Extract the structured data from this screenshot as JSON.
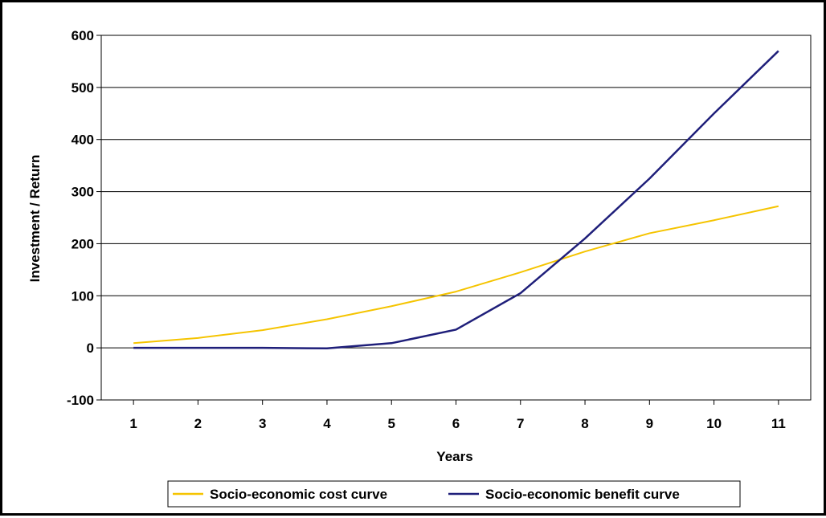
{
  "chart_data": {
    "type": "line",
    "title": "",
    "xlabel": "Years",
    "ylabel": "Investment / Return",
    "x": [
      1,
      2,
      3,
      4,
      5,
      6,
      7,
      8,
      9,
      10,
      11
    ],
    "xlim": [
      0.5,
      11.5
    ],
    "ylim": [
      -100,
      600
    ],
    "yticks": [
      -100,
      0,
      100,
      200,
      300,
      400,
      500,
      600
    ],
    "grid": "horizontal",
    "legend_position": "bottom",
    "series": [
      {
        "name": "Socio-economic cost curve",
        "color": "#F5C400",
        "values": [
          9,
          19,
          34,
          55,
          80,
          108,
          145,
          185,
          220,
          245,
          272
        ]
      },
      {
        "name": "Socio-economic benefit curve",
        "color": "#1F1F7A",
        "values": [
          0,
          0,
          0,
          -1,
          9,
          35,
          105,
          210,
          325,
          450,
          570
        ]
      }
    ]
  }
}
